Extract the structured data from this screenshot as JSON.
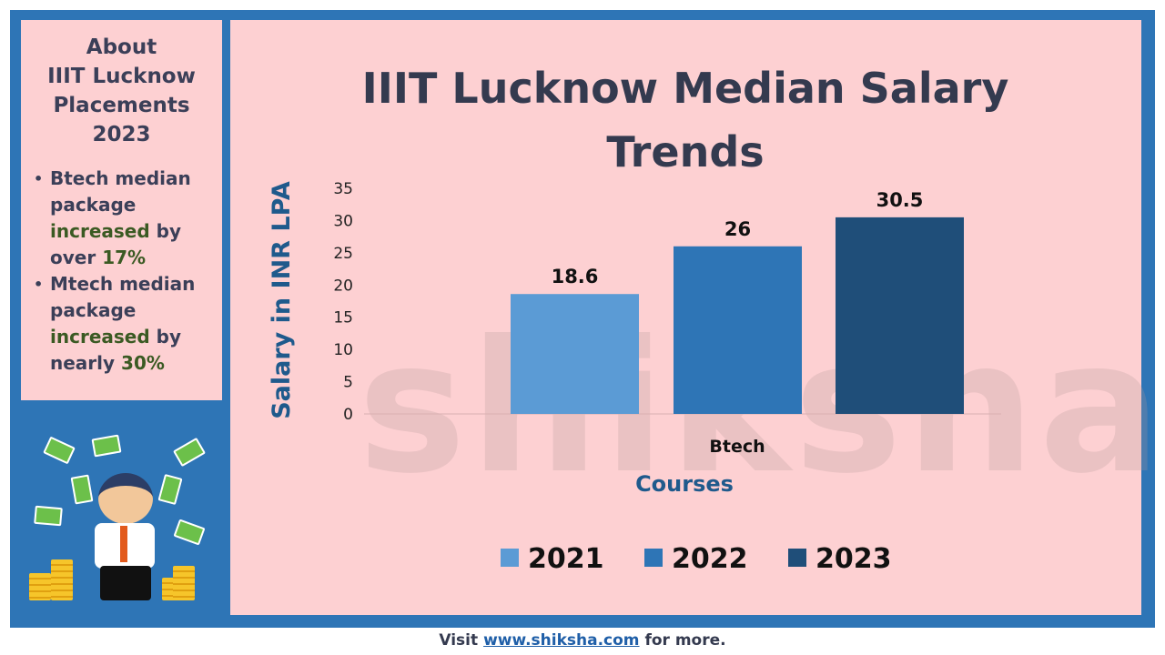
{
  "sidebar": {
    "heading": [
      "About",
      "IIIT Lucknow",
      "Placements",
      "2023"
    ],
    "bullets": [
      {
        "a": "Btech median package",
        "b": "increased",
        "c": "by over",
        "d": "17%"
      },
      {
        "a": "Mtech median package",
        "b": "increased",
        "c": "by nearly",
        "d": "30%"
      }
    ]
  },
  "watermark": "shiksha",
  "footer": {
    "pre": "Visit",
    "link": "www.shiksha.com",
    "post": "for more."
  },
  "chart_data": {
    "type": "bar",
    "title": "IIIT Lucknow Median Salary Trends",
    "title_lines": [
      "IIIT Lucknow Median Salary",
      "Trends"
    ],
    "xlabel": "Courses",
    "ylabel": "Salary in INR LPA",
    "categories": [
      "Btech"
    ],
    "ylim": [
      0,
      35
    ],
    "yticks": [
      0,
      5,
      10,
      15,
      20,
      25,
      30,
      35
    ],
    "series": [
      {
        "name": "2021",
        "values": [
          18.6
        ],
        "color": "#5b9bd5"
      },
      {
        "name": "2022",
        "values": [
          26
        ],
        "color": "#2e75b6"
      },
      {
        "name": "2023",
        "values": [
          30.5
        ],
        "color": "#1f4e79"
      }
    ],
    "legend": "bottom"
  }
}
